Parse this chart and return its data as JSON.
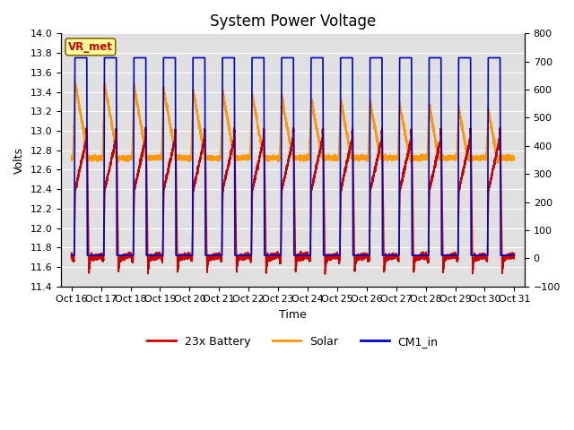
{
  "title": "System Power Voltage",
  "xlabel": "Time",
  "ylabel_left": "Volts",
  "ylim_left": [
    11.4,
    14.0
  ],
  "ylim_right": [
    -100,
    800
  ],
  "background_color": "#ffffff",
  "plot_bg_color": "#e0e0e0",
  "grid_color": "#ffffff",
  "x_labels": [
    "Oct 16",
    "Oct 17",
    "Oct 18",
    "Oct 19",
    "Oct 20",
    "Oct 21",
    "Oct 22",
    "Oct 23",
    "Oct 24",
    "Oct 25",
    "Oct 26",
    "Oct 27",
    "Oct 28",
    "Oct 29",
    "Oct 30",
    "Oct 31"
  ],
  "x_ticks": [
    16,
    17,
    18,
    19,
    20,
    21,
    22,
    23,
    24,
    25,
    26,
    27,
    28,
    29,
    30,
    31
  ],
  "legend_labels": [
    "23x Battery",
    "Solar",
    "CM1_in"
  ],
  "legend_colors": [
    "#cc0000",
    "#ff9900",
    "#0000cc"
  ],
  "vr_met_box_color": "#ffff99",
  "vr_met_text_color": "#cc0000",
  "title_fontsize": 12,
  "label_fontsize": 9,
  "tick_fontsize": 8,
  "line_width": 1.2,
  "yticks_left": [
    11.4,
    11.6,
    11.8,
    12.0,
    12.2,
    12.4,
    12.6,
    12.8,
    13.0,
    13.2,
    13.4,
    13.6,
    13.8,
    14.0
  ],
  "yticks_right": [
    -100,
    0,
    100,
    200,
    300,
    400,
    500,
    600,
    700,
    800
  ]
}
